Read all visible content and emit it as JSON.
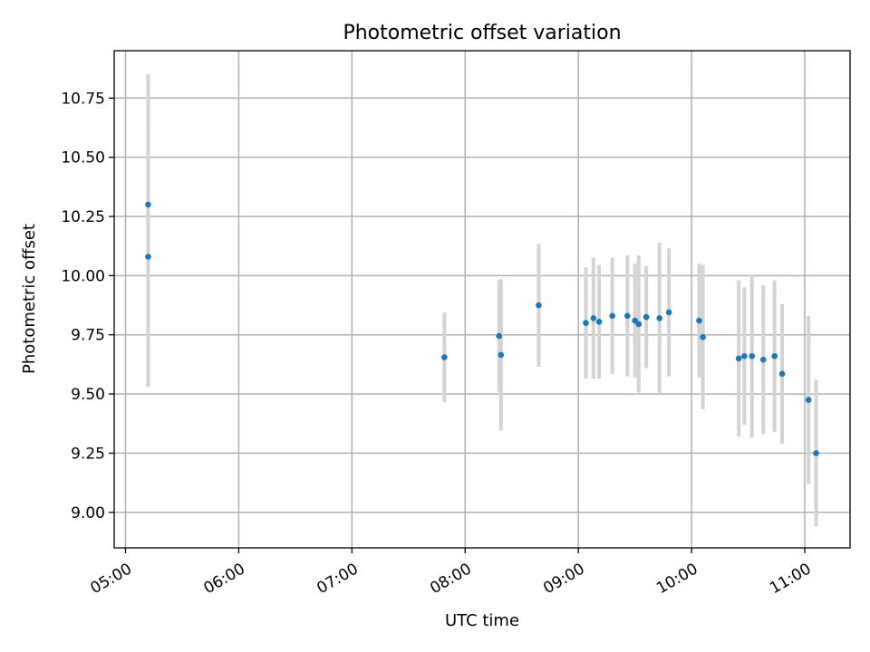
{
  "chart_data": {
    "type": "scatter",
    "title": "Photometric offset variation",
    "xlabel": "UTC time",
    "ylabel": "Photometric offset",
    "xlim": [
      "04:54",
      "11:24"
    ],
    "ylim": [
      8.85,
      10.95
    ],
    "x_ticks": [
      "05:00",
      "06:00",
      "07:00",
      "08:00",
      "09:00",
      "10:00",
      "11:00"
    ],
    "y_ticks": [
      9.0,
      9.25,
      9.5,
      9.75,
      10.0,
      10.25,
      10.5,
      10.75
    ],
    "y_tick_labels": [
      "9.00",
      "9.25",
      "9.50",
      "9.75",
      "10.00",
      "10.25",
      "10.50",
      "10.75"
    ],
    "grid": true,
    "series": [
      {
        "marker_color": "#1f77b4",
        "error_color": "#d3d3d3",
        "points": [
          {
            "x": "05:12",
            "y": 10.3,
            "yerr": 0.55
          },
          {
            "x": "05:12",
            "y": 10.08,
            "yerr": 0.55
          },
          {
            "x": "07:49",
            "y": 9.655,
            "yerr": 0.19
          },
          {
            "x": "08:18",
            "y": 9.745,
            "yerr": 0.235
          },
          {
            "x": "08:19",
            "y": 9.665,
            "yerr": 0.32
          },
          {
            "x": "08:39",
            "y": 9.875,
            "yerr": 0.26
          },
          {
            "x": "09:04",
            "y": 9.8,
            "yerr": 0.235
          },
          {
            "x": "09:08",
            "y": 9.82,
            "yerr": 0.255
          },
          {
            "x": "09:11",
            "y": 9.805,
            "yerr": 0.24
          },
          {
            "x": "09:18",
            "y": 9.83,
            "yerr": 0.245
          },
          {
            "x": "09:26",
            "y": 9.83,
            "yerr": 0.255
          },
          {
            "x": "09:30",
            "y": 9.81,
            "yerr": 0.24
          },
          {
            "x": "09:32",
            "y": 9.795,
            "yerr": 0.29
          },
          {
            "x": "09:36",
            "y": 9.825,
            "yerr": 0.215
          },
          {
            "x": "09:43",
            "y": 9.82,
            "yerr": 0.32
          },
          {
            "x": "09:48",
            "y": 9.845,
            "yerr": 0.27
          },
          {
            "x": "10:04",
            "y": 9.81,
            "yerr": 0.24
          },
          {
            "x": "10:06",
            "y": 9.74,
            "yerr": 0.305
          },
          {
            "x": "10:25",
            "y": 9.65,
            "yerr": 0.33
          },
          {
            "x": "10:28",
            "y": 9.66,
            "yerr": 0.29
          },
          {
            "x": "10:32",
            "y": 9.66,
            "yerr": 0.345
          },
          {
            "x": "10:38",
            "y": 9.645,
            "yerr": 0.315
          },
          {
            "x": "10:44",
            "y": 9.66,
            "yerr": 0.32
          },
          {
            "x": "10:48",
            "y": 9.585,
            "yerr": 0.295
          },
          {
            "x": "11:02",
            "y": 9.475,
            "yerr": 0.355
          },
          {
            "x": "11:06",
            "y": 9.25,
            "yerr": 0.31
          }
        ]
      }
    ]
  }
}
